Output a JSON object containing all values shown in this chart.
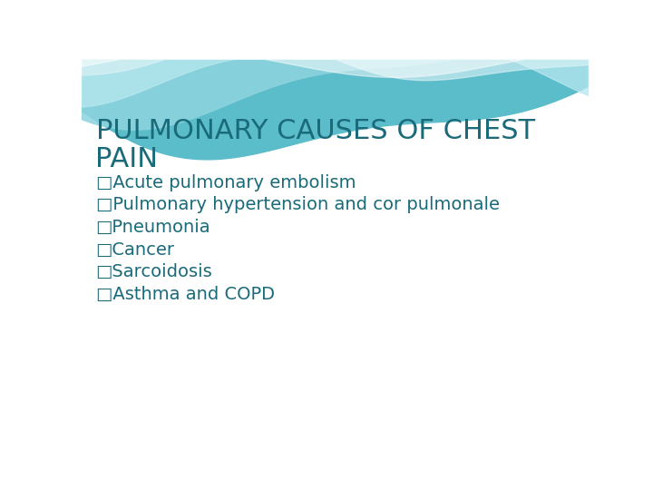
{
  "title_line1": "PULMONARY CAUSES OF CHEST",
  "title_line2": "PAIN",
  "title_color": "#1a6b7a",
  "bullet_color": "#1a6b7a",
  "bullet_items": [
    "□Acute pulmonary embolism",
    "□Pulmonary hypertension and cor pulmonale",
    "□Pneumonia",
    "□Cancer",
    "□Sarcoidosis",
    "□Asthma and COPD"
  ],
  "bg_color": "#ffffff",
  "wave_color_dark": "#5bbcca",
  "wave_color_mid": "#8dd4df",
  "wave_color_light": "#b8e8ef",
  "wave_color_white": "#dff4f8",
  "title_fontsize": 22,
  "bullet_fontsize": 14
}
